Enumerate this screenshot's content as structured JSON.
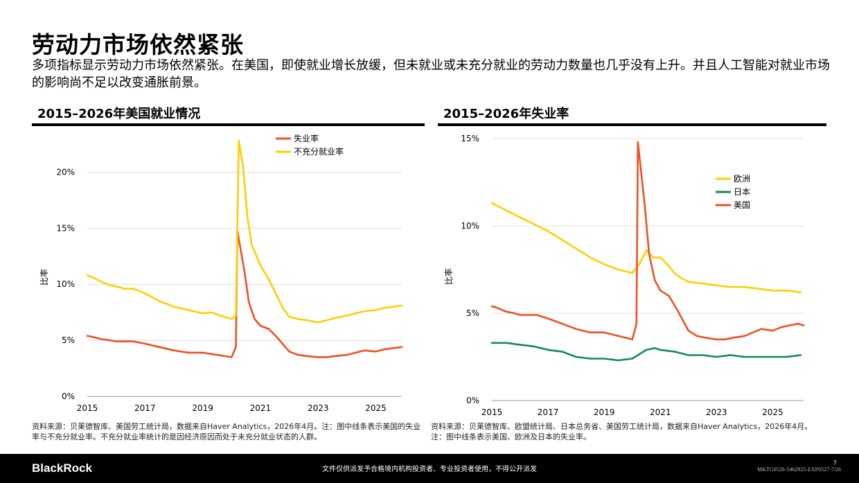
{
  "page": {
    "title": "劳动力市场依然紧张",
    "subtitle": "多项指标显示劳动力市场依然紧张。在美国，即使就业增长放缓，但未就业或未充分就业的劳动力数量也几乎没有上升。并且人工智能对就业市场的影响尚不足以改变通胀前景。"
  },
  "footer": {
    "logo": "BlackRock",
    "disclaimer": "文件仅供派发予合格境内机构投资者、专业投资者使用，不得公开派发",
    "code": "MKTG0526-5462925-EXP0527-7/26",
    "page_number": "7"
  },
  "colors": {
    "orange": "#F04E1F",
    "yellow": "#FFCE00",
    "green": "#0E8A58"
  },
  "chart_data": [
    {
      "type": "line",
      "title": "2015–2026年美国就业情况",
      "xlabel": "",
      "ylabel": "比率",
      "xlim": [
        2015,
        2025.9
      ],
      "ylim": [
        0,
        22.5
      ],
      "x_ticks": [
        "2015",
        "2017",
        "2019",
        "2021",
        "2023",
        "2025"
      ],
      "y_ticks": [
        "0%",
        "5%",
        "10%",
        "15%",
        "20%"
      ],
      "y_tick_values": [
        0,
        5,
        10,
        15,
        20
      ],
      "grid": "horizontal",
      "legend": "top-center",
      "source": "资料来源：贝莱德智库、美国劳工统计局，数据来自Haver Analytics，2026年4月。注：图中线条表示美国的失业率与不充分就业率。不充分就业率统计的是因经济原因而处于未充分就业状态的人群。",
      "series": [
        {
          "name": "失业率",
          "color": "#F04E1F",
          "x": [
            2015.0,
            2015.2,
            2015.5,
            2015.8,
            2016.0,
            2016.3,
            2016.6,
            2017.0,
            2017.5,
            2018.0,
            2018.5,
            2019.0,
            2019.5,
            2020.0,
            2020.15,
            2020.2,
            2020.3,
            2020.45,
            2020.6,
            2020.8,
            2021.0,
            2021.3,
            2021.6,
            2021.8,
            2022.0,
            2022.3,
            2022.6,
            2023.0,
            2023.3,
            2023.6,
            2024.0,
            2024.3,
            2024.6,
            2025.0,
            2025.3,
            2025.6,
            2025.9
          ],
          "values": [
            5.4,
            5.3,
            5.1,
            5.0,
            4.9,
            4.9,
            4.9,
            4.7,
            4.4,
            4.1,
            3.9,
            3.9,
            3.7,
            3.5,
            4.4,
            14.8,
            13.3,
            11.1,
            8.4,
            6.9,
            6.3,
            6.0,
            5.2,
            4.6,
            4.0,
            3.7,
            3.6,
            3.5,
            3.5,
            3.6,
            3.7,
            3.9,
            4.1,
            4.0,
            4.2,
            4.3,
            4.4
          ]
        },
        {
          "name": "不充分就业率",
          "color": "#FFCE00",
          "x": [
            2015.0,
            2015.2,
            2015.5,
            2015.8,
            2016.0,
            2016.3,
            2016.6,
            2017.0,
            2017.5,
            2018.0,
            2018.5,
            2019.0,
            2019.3,
            2019.5,
            2020.0,
            2020.15,
            2020.25,
            2020.4,
            2020.55,
            2020.7,
            2021.0,
            2021.3,
            2021.6,
            2021.8,
            2022.0,
            2022.3,
            2022.6,
            2023.0,
            2023.3,
            2023.6,
            2024.0,
            2024.3,
            2024.6,
            2025.0,
            2025.3,
            2025.6,
            2025.9
          ],
          "values": [
            10.8,
            10.6,
            10.2,
            9.9,
            9.8,
            9.6,
            9.6,
            9.2,
            8.5,
            8.0,
            7.7,
            7.4,
            7.5,
            7.3,
            6.9,
            7.2,
            22.8,
            20.5,
            16.0,
            13.5,
            11.7,
            10.4,
            8.8,
            7.8,
            7.1,
            6.9,
            6.8,
            6.6,
            6.8,
            7.0,
            7.2,
            7.4,
            7.6,
            7.7,
            7.9,
            8.0,
            8.1
          ]
        }
      ]
    },
    {
      "type": "line",
      "title": "2015–2026年失业率",
      "xlabel": "",
      "ylabel": "比率",
      "xlim": [
        2015,
        2026.1
      ],
      "ylim": [
        0,
        15
      ],
      "x_ticks": [
        "2015",
        "2017",
        "2019",
        "2021",
        "2023",
        "2025"
      ],
      "y_ticks": [
        "0%",
        "5%",
        "10%",
        "15%"
      ],
      "y_tick_values": [
        0,
        5,
        10,
        15
      ],
      "grid": "horizontal",
      "legend": "top-right",
      "source": "资料来源：贝莱德智库、欧盟统计局、日本总务省、美国劳工统计局，数据来自Haver Analytics，2026年4月。注：图中线条表示美国、欧洲及日本的失业率。",
      "series": [
        {
          "name": "欧洲",
          "color": "#FFCE00",
          "x": [
            2015.0,
            2015.5,
            2016.0,
            2016.5,
            2017.0,
            2017.5,
            2018.0,
            2018.5,
            2019.0,
            2019.5,
            2020.0,
            2020.25,
            2020.5,
            2020.75,
            2021.0,
            2021.25,
            2021.5,
            2021.75,
            2022.0,
            2022.5,
            2023.0,
            2023.5,
            2024.0,
            2024.5,
            2025.0,
            2025.5,
            2026.0
          ],
          "values": [
            11.3,
            10.9,
            10.5,
            10.1,
            9.7,
            9.2,
            8.7,
            8.2,
            7.8,
            7.5,
            7.3,
            7.8,
            8.6,
            8.2,
            8.2,
            7.8,
            7.3,
            7.0,
            6.8,
            6.7,
            6.6,
            6.5,
            6.5,
            6.4,
            6.3,
            6.3,
            6.2
          ]
        },
        {
          "name": "日本",
          "color": "#0E8A58",
          "x": [
            2015.0,
            2015.5,
            2016.0,
            2016.5,
            2017.0,
            2017.5,
            2018.0,
            2018.5,
            2019.0,
            2019.5,
            2020.0,
            2020.5,
            2020.8,
            2021.0,
            2021.5,
            2022.0,
            2022.5,
            2023.0,
            2023.5,
            2024.0,
            2024.5,
            2025.0,
            2025.5,
            2026.0
          ],
          "values": [
            3.3,
            3.3,
            3.2,
            3.1,
            2.9,
            2.8,
            2.5,
            2.4,
            2.4,
            2.3,
            2.4,
            2.9,
            3.0,
            2.9,
            2.8,
            2.6,
            2.6,
            2.5,
            2.6,
            2.5,
            2.5,
            2.5,
            2.5,
            2.6
          ]
        },
        {
          "name": "美国",
          "color": "#F04E1F",
          "x": [
            2015.0,
            2015.2,
            2015.5,
            2015.8,
            2016.0,
            2016.3,
            2016.6,
            2017.0,
            2017.5,
            2018.0,
            2018.5,
            2019.0,
            2019.5,
            2020.0,
            2020.15,
            2020.2,
            2020.3,
            2020.45,
            2020.6,
            2020.8,
            2021.0,
            2021.3,
            2021.6,
            2021.8,
            2022.0,
            2022.3,
            2022.6,
            2023.0,
            2023.3,
            2023.6,
            2024.0,
            2024.3,
            2024.6,
            2025.0,
            2025.3,
            2025.6,
            2025.9,
            2026.1
          ],
          "values": [
            5.4,
            5.3,
            5.1,
            5.0,
            4.9,
            4.9,
            4.9,
            4.7,
            4.4,
            4.1,
            3.9,
            3.9,
            3.7,
            3.5,
            4.4,
            14.8,
            13.3,
            11.1,
            8.4,
            6.9,
            6.3,
            6.0,
            5.2,
            4.6,
            4.0,
            3.7,
            3.6,
            3.5,
            3.5,
            3.6,
            3.7,
            3.9,
            4.1,
            4.0,
            4.2,
            4.3,
            4.4,
            4.3
          ]
        }
      ]
    }
  ]
}
